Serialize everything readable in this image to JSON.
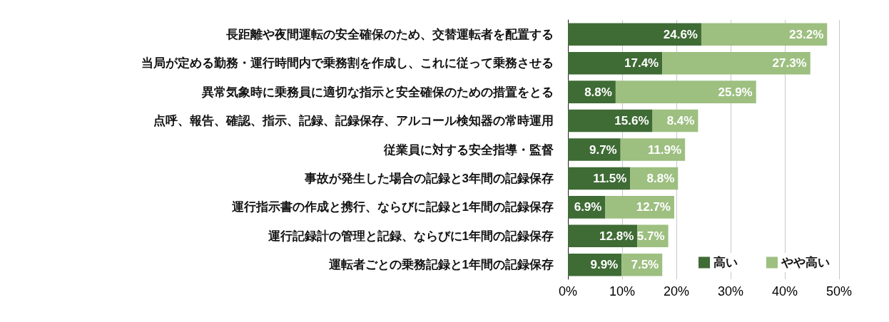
{
  "chart_data": {
    "type": "bar",
    "orientation": "horizontal",
    "stacked": true,
    "categories": [
      "長距離や夜間運転の安全確保のため、交替運転者を配置する",
      "当局が定める勤務・運行時間内で乗務割を作成し、これに従って乗務させる",
      "異常気象時に乗務員に適切な指示と安全確保のための措置をとる",
      "点呼、報告、確認、指示、記録、記録保存、アルコール検知器の常時運用",
      "従業員に対する安全指導・監督",
      "事故が発生した場合の記録と3年間の記録保存",
      "運行指示書の作成と携行、ならびに記録と1年間の記録保存",
      "運行記録計の管理と記録、ならびに1年間の記録保存",
      "運転者ごとの乗務記録と1年間の記録保存"
    ],
    "series": [
      {
        "name": "高い",
        "color": "#3f6b35",
        "values": [
          24.6,
          17.4,
          8.8,
          15.6,
          9.7,
          11.5,
          6.9,
          12.8,
          9.9
        ],
        "value_labels": [
          "24.6%",
          "17.4%",
          "8.8%",
          "15.6%",
          "9.7%",
          "11.5%",
          "6.9%",
          "12.8%",
          "9.9%"
        ]
      },
      {
        "name": "やや高い",
        "color": "#9dbf80",
        "values": [
          23.2,
          27.3,
          25.9,
          8.4,
          11.9,
          8.8,
          12.7,
          5.7,
          7.5
        ],
        "value_labels": [
          "23.2%",
          "27.3%",
          "25.9%",
          "8.4%",
          "11.9%",
          "8.8%",
          "12.7%",
          "5.7%",
          "7.5%"
        ]
      }
    ],
    "xlim": [
      0,
      50
    ],
    "xticks": [
      {
        "value": 0,
        "label": "0%"
      },
      {
        "value": 10,
        "label": "10%"
      },
      {
        "value": 20,
        "label": "20%"
      },
      {
        "value": 30,
        "label": "30%"
      },
      {
        "value": 40,
        "label": "40%"
      },
      {
        "value": 50,
        "label": "50%"
      }
    ],
    "grid": "x",
    "legend": "bottom right"
  }
}
